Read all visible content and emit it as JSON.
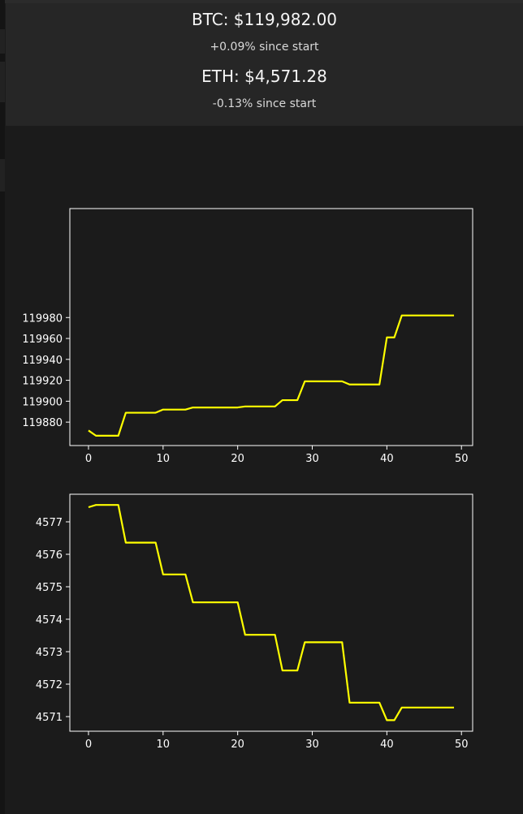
{
  "tickers": [
    {
      "price_text": "BTC: $119,982.00",
      "change_text": "+0.09% since start"
    },
    {
      "price_text": "ETH: $4,571.28",
      "change_text": "-0.13% since start"
    }
  ],
  "colors": {
    "background": "#1b1b1b",
    "header_background": "#262626",
    "line": "#ffff00",
    "axes": "#ffffff"
  },
  "chart_data": [
    {
      "type": "line",
      "title": "",
      "xlabel": "",
      "ylabel": "",
      "grid": false,
      "xlim": [
        -2.5,
        51.5
      ],
      "ylim": [
        119857.6,
        120084.2
      ],
      "xticks": [
        0,
        10,
        20,
        30,
        40,
        50
      ],
      "yticks": [
        119880,
        119900,
        119920,
        119940,
        119960,
        119980
      ],
      "x": [
        0,
        1,
        2,
        3,
        4,
        5,
        6,
        7,
        8,
        9,
        10,
        11,
        12,
        13,
        14,
        15,
        16,
        17,
        18,
        19,
        20,
        21,
        22,
        23,
        24,
        25,
        26,
        27,
        28,
        29,
        30,
        31,
        32,
        33,
        34,
        35,
        36,
        37,
        38,
        39,
        40,
        41,
        42,
        43,
        44,
        45,
        46,
        47,
        48,
        49
      ],
      "series": [
        {
          "values": [
            119872,
            119867,
            119867,
            119867,
            119867,
            119889,
            119889,
            119889,
            119889,
            119889,
            119892,
            119892,
            119892,
            119892,
            119894,
            119894,
            119894,
            119894,
            119894,
            119894,
            119894,
            119895,
            119895,
            119895,
            119895,
            119895,
            119901,
            119901,
            119901,
            119919,
            119919,
            119919,
            119919,
            119919,
            119919,
            119916,
            119916,
            119916,
            119916,
            119916,
            119961,
            119961,
            119982,
            119982,
            119982,
            119982,
            119982,
            119982,
            119982,
            119982
          ]
        }
      ]
    },
    {
      "type": "line",
      "title": "",
      "xlabel": "",
      "ylabel": "",
      "grid": false,
      "xlim": [
        -2.5,
        51.5
      ],
      "ylim": [
        4570.55,
        4577.85
      ],
      "xticks": [
        0,
        10,
        20,
        30,
        40,
        50
      ],
      "yticks": [
        4571,
        4572,
        4573,
        4574,
        4575,
        4576,
        4577
      ],
      "x": [
        0,
        1,
        2,
        3,
        4,
        5,
        6,
        7,
        8,
        9,
        10,
        11,
        12,
        13,
        14,
        15,
        16,
        17,
        18,
        19,
        20,
        21,
        22,
        23,
        24,
        25,
        26,
        27,
        28,
        29,
        30,
        31,
        32,
        33,
        34,
        35,
        36,
        37,
        38,
        39,
        40,
        41,
        42,
        43,
        44,
        45,
        46,
        47,
        48,
        49
      ],
      "series": [
        {
          "values": [
            4577.45,
            4577.52,
            4577.52,
            4577.52,
            4577.52,
            4576.36,
            4576.36,
            4576.36,
            4576.36,
            4576.36,
            4575.38,
            4575.38,
            4575.38,
            4575.38,
            4574.52,
            4574.52,
            4574.52,
            4574.52,
            4574.52,
            4574.52,
            4574.52,
            4573.52,
            4573.52,
            4573.52,
            4573.52,
            4573.52,
            4572.42,
            4572.42,
            4572.42,
            4573.29,
            4573.29,
            4573.29,
            4573.29,
            4573.29,
            4573.29,
            4571.43,
            4571.43,
            4571.43,
            4571.43,
            4571.43,
            4570.89,
            4570.89,
            4571.28,
            4571.28,
            4571.28,
            4571.28,
            4571.28,
            4571.28,
            4571.28,
            4571.28
          ]
        }
      ]
    }
  ]
}
